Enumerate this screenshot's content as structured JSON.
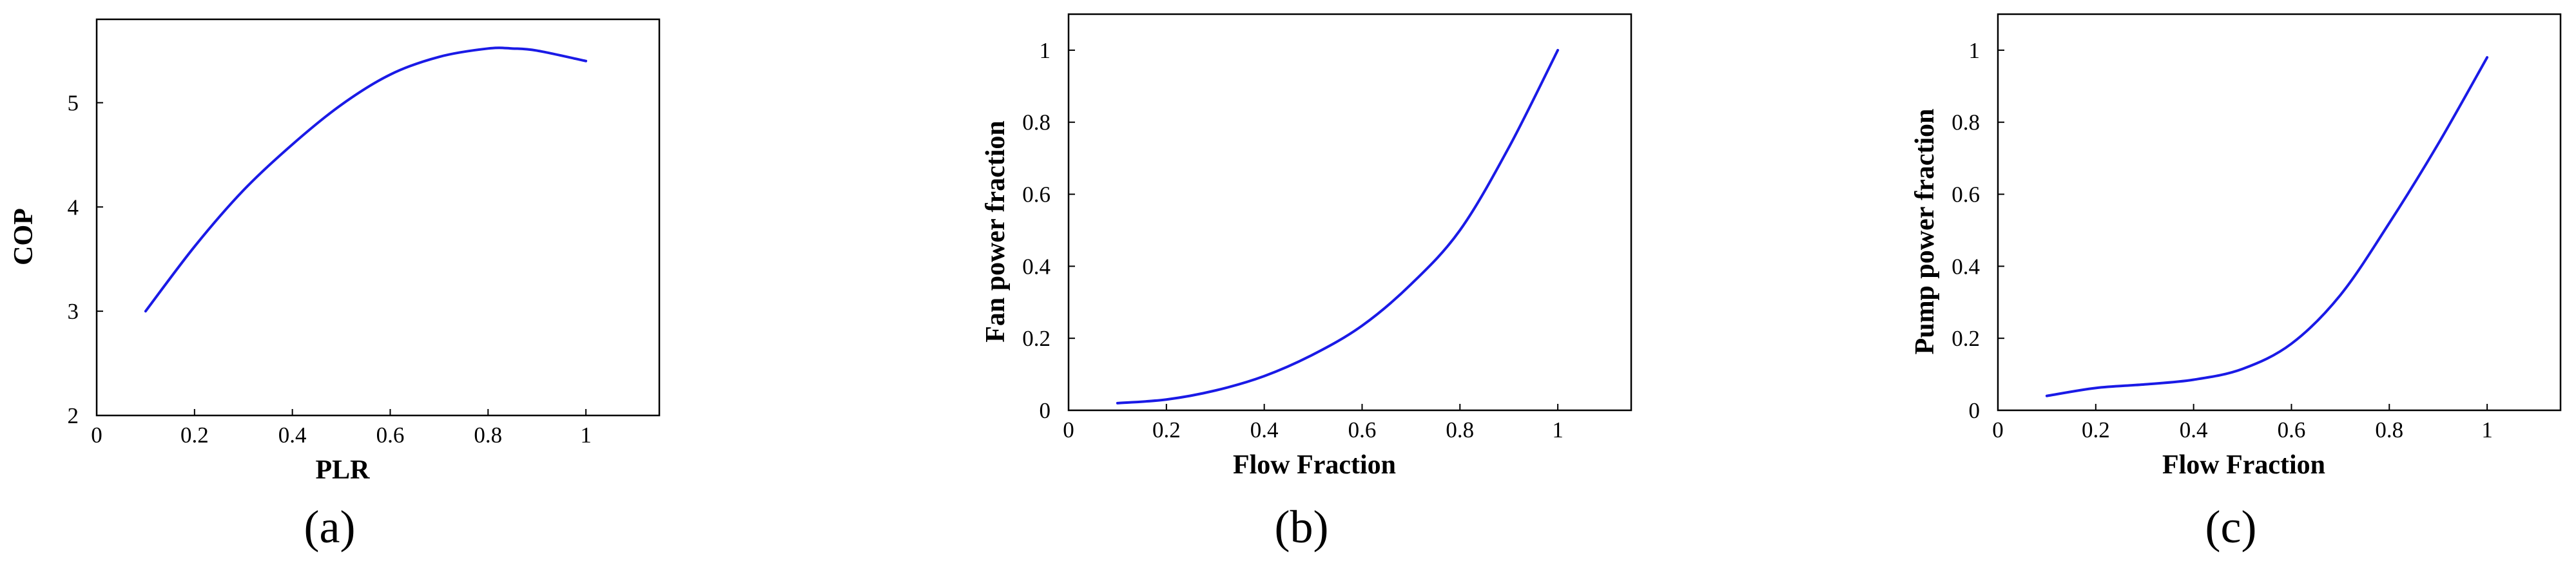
{
  "colors": {
    "line": "#1a1ae6",
    "axis": "#000000"
  },
  "chart_data": [
    {
      "type": "line",
      "panel_label": "(a)",
      "xlabel": "PLR",
      "ylabel": "COP",
      "xlim": [
        0,
        1.15
      ],
      "ylim": [
        2,
        5.8
      ],
      "xticks": [
        0,
        0.2,
        0.4,
        0.6,
        0.8,
        1
      ],
      "xtick_labels": [
        "0",
        "0.2",
        "0.4",
        "0.6",
        "0.8",
        "1"
      ],
      "yticks": [
        2,
        3,
        4,
        5
      ],
      "ytick_labels": [
        "2",
        "3",
        "4",
        "5"
      ],
      "grid": false,
      "series": [
        {
          "x": [
            0.1,
            0.2,
            0.3,
            0.4,
            0.5,
            0.6,
            0.7,
            0.8,
            0.85,
            0.9,
            1.0
          ],
          "y": [
            3.0,
            3.62,
            4.16,
            4.6,
            4.98,
            5.27,
            5.44,
            5.52,
            5.52,
            5.5,
            5.4
          ]
        }
      ]
    },
    {
      "type": "line",
      "panel_label": "(b)",
      "xlabel": "Flow Fraction",
      "ylabel": "Fan power fraction",
      "xlim": [
        0,
        1.15
      ],
      "ylim": [
        0,
        1.1
      ],
      "xticks": [
        0,
        0.2,
        0.4,
        0.6,
        0.8,
        1
      ],
      "xtick_labels": [
        "0",
        "0.2",
        "0.4",
        "0.6",
        "0.8",
        "1"
      ],
      "yticks": [
        0,
        0.2,
        0.4,
        0.6,
        0.8,
        1
      ],
      "ytick_labels": [
        "0",
        "0.2",
        "0.4",
        "0.6",
        "0.8",
        "1"
      ],
      "grid": false,
      "series": [
        {
          "x": [
            0.1,
            0.2,
            0.3,
            0.4,
            0.5,
            0.6,
            0.7,
            0.8,
            0.9,
            1.0
          ],
          "y": [
            0.02,
            0.03,
            0.055,
            0.095,
            0.155,
            0.235,
            0.35,
            0.5,
            0.73,
            1.0
          ]
        }
      ]
    },
    {
      "type": "line",
      "panel_label": "(c)",
      "xlabel": "Flow Fraction",
      "ylabel": "Pump power fraction",
      "xlim": [
        0,
        1.15
      ],
      "ylim": [
        0,
        1.1
      ],
      "xticks": [
        0,
        0.2,
        0.4,
        0.6,
        0.8,
        1
      ],
      "xtick_labels": [
        "0",
        "0.2",
        "0.4",
        "0.6",
        "0.8",
        "1"
      ],
      "yticks": [
        0,
        0.2,
        0.4,
        0.6,
        0.8,
        1
      ],
      "ytick_labels": [
        "0",
        "0.2",
        "0.4",
        "0.6",
        "0.8",
        "1"
      ],
      "grid": false,
      "series": [
        {
          "x": [
            0.1,
            0.2,
            0.3,
            0.4,
            0.5,
            0.6,
            0.7,
            0.8,
            0.9,
            1.0
          ],
          "y": [
            0.04,
            0.062,
            0.072,
            0.085,
            0.115,
            0.185,
            0.32,
            0.52,
            0.74,
            0.98
          ]
        }
      ]
    }
  ]
}
